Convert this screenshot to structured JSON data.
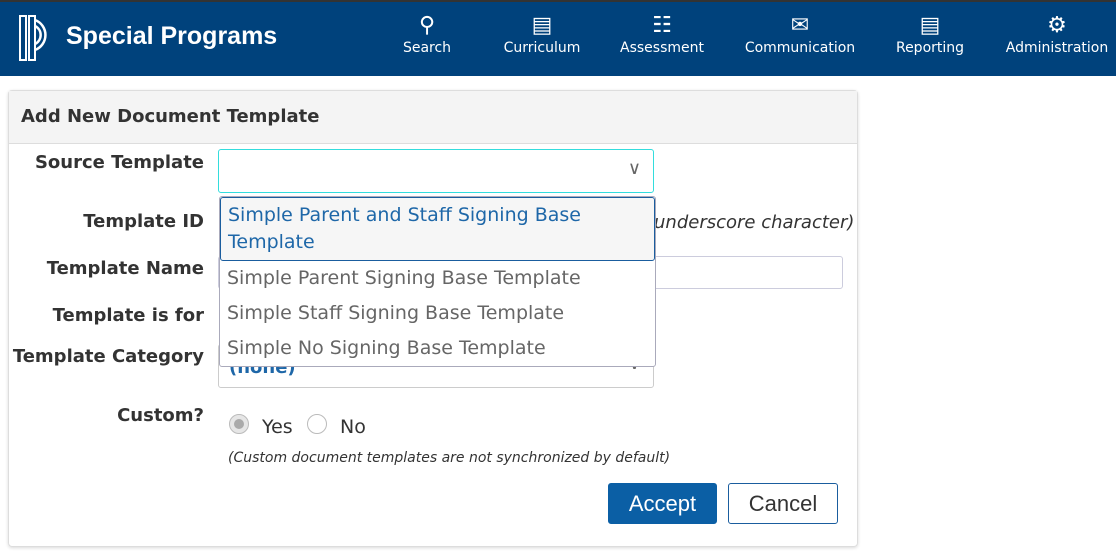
{
  "header": {
    "brand": "Special Programs",
    "nav": [
      {
        "label": "Search",
        "icon": "search-icon"
      },
      {
        "label": "Curriculum",
        "icon": "book-icon"
      },
      {
        "label": "Assessment",
        "icon": "clipboard-icon"
      },
      {
        "label": "Communication",
        "icon": "chat-icon"
      },
      {
        "label": "Reporting",
        "icon": "document-icon"
      },
      {
        "label": "Administration",
        "icon": "gear-icon"
      }
    ]
  },
  "form": {
    "title": "Add New Document Template",
    "labels": {
      "source": "Source Template",
      "id": "Template ID",
      "name": "Template Name",
      "for": "Template is for",
      "category": "Template Category",
      "custom": "Custom?"
    },
    "id_hint": "underscore character)",
    "category_value": "(none)",
    "custom_yes": "Yes",
    "custom_no": "No",
    "custom_note": "(Custom document templates are not synchronized by default)",
    "accept": "Accept",
    "cancel": "Cancel",
    "source_options": [
      "Simple Parent and Staff Signing Base Template",
      "Simple Parent Signing Base Template",
      "Simple Staff Signing Base Template",
      "Simple No Signing Base Template"
    ]
  },
  "colors": {
    "header": "#00427c",
    "accent": "#0b5fa5"
  }
}
